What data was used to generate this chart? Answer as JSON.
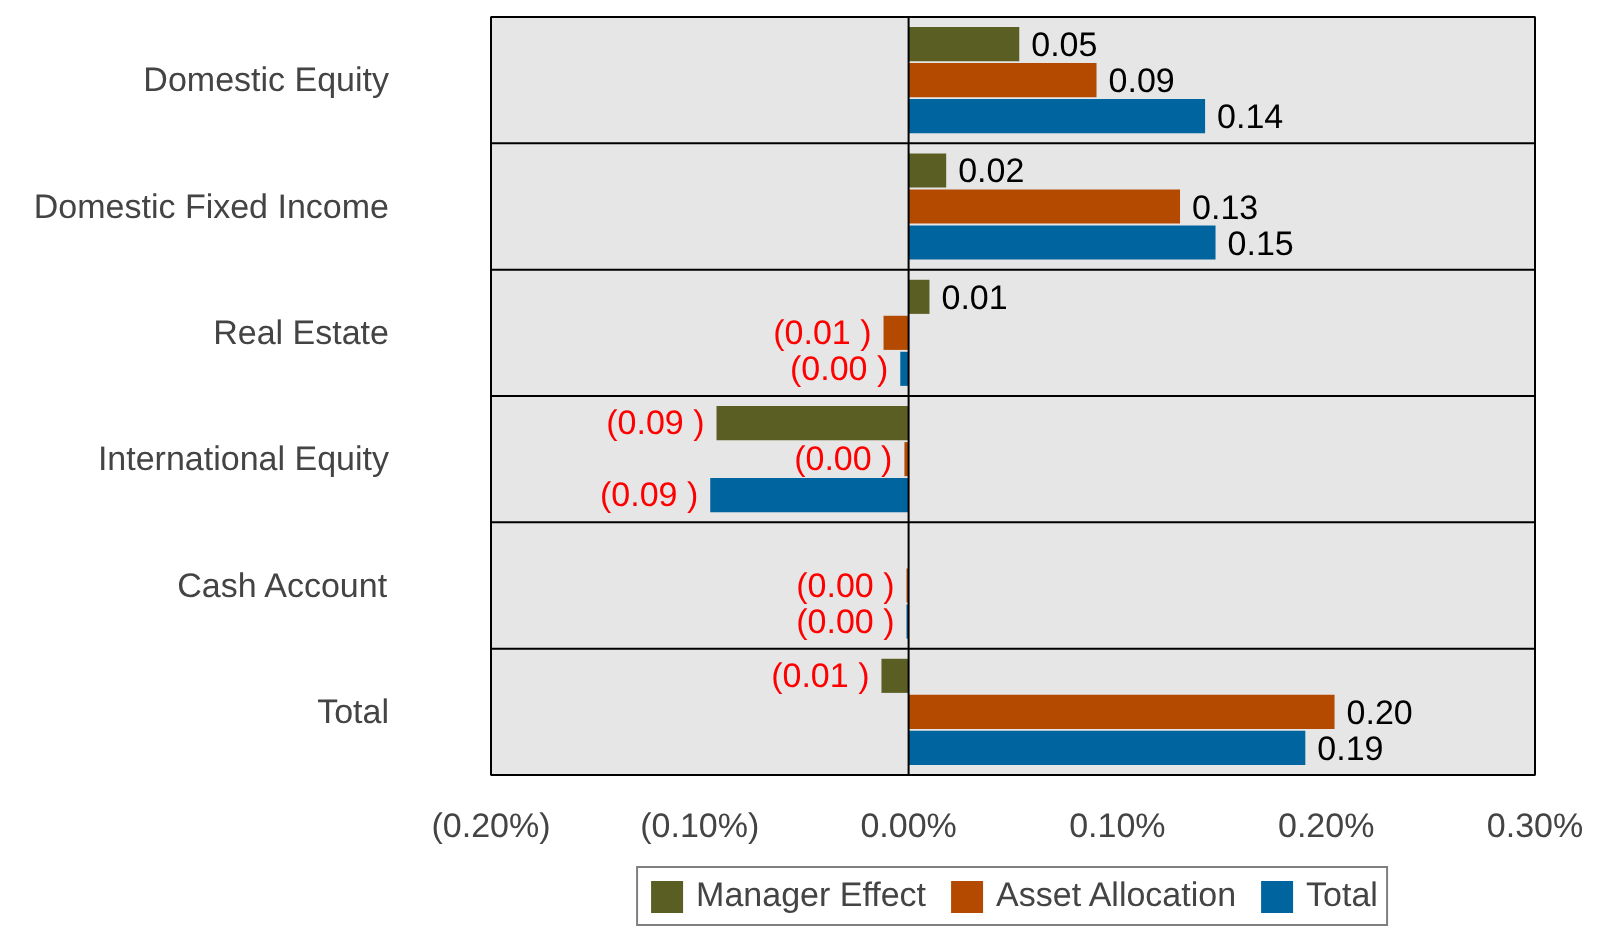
{
  "chart_data": {
    "type": "bar",
    "orientation": "horizontal",
    "categories": [
      "Domestic Equity",
      "Domestic Fixed Income",
      "Real Estate",
      "International Equity",
      "Cash Account",
      "Total"
    ],
    "series": [
      {
        "name": "Manager Effect",
        "color": "#5b5e22",
        "values": [
          0.053,
          0.018,
          0.01,
          -0.092,
          0,
          -0.013
        ],
        "value_labels": [
          "0.05",
          "0.02",
          "0.01",
          "(0.09 )",
          null,
          "(0.01 )"
        ]
      },
      {
        "name": "Asset Allocation",
        "color": "#b34a00",
        "values": [
          0.09,
          0.13,
          -0.012,
          -0.002,
          -0.001,
          0.204
        ],
        "value_labels": [
          "0.09",
          "0.13",
          "(0.01 )",
          "(0.00 )",
          "(0.00 )",
          "0.20"
        ]
      },
      {
        "name": "Total",
        "color": "#00649f",
        "values": [
          0.142,
          0.147,
          -0.004,
          -0.095,
          -0.001,
          0.19
        ],
        "value_labels": [
          "0.14",
          "0.15",
          "(0.00 )",
          "(0.09 )",
          "(0.00 )",
          "0.19"
        ]
      }
    ],
    "xlim": [
      -0.2,
      0.3
    ],
    "xticks": [
      {
        "value": -0.2,
        "label": "(0.20%)"
      },
      {
        "value": -0.1,
        "label": "(0.10%)"
      },
      {
        "value": 0,
        "label": "0.00%"
      },
      {
        "value": 0.1,
        "label": "0.10%"
      },
      {
        "value": 0.2,
        "label": "0.20%"
      },
      {
        "value": 0.3,
        "label": "0.30%"
      }
    ],
    "ref_lines": [
      {
        "axis": "x",
        "value": 0,
        "color": "#000000"
      }
    ],
    "grid": "y",
    "legend": "bottom"
  }
}
